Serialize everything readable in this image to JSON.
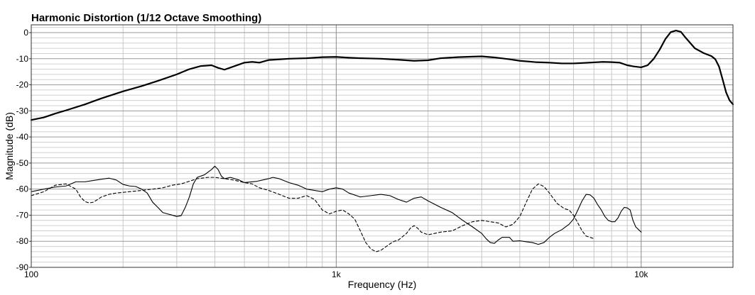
{
  "chart_data": {
    "type": "line",
    "title": "Harmonic Distortion (1/12 Octave Smoothing)",
    "xlabel": "Frequency (Hz)",
    "ylabel": "Magnitude (dB)",
    "x_scale": "log",
    "xlim": [
      100,
      20000
    ],
    "ylim": [
      -90,
      3
    ],
    "x_tick_labels": [
      {
        "value": 100,
        "label": "100"
      },
      {
        "value": 1000,
        "label": "1k"
      },
      {
        "value": 10000,
        "label": "10k"
      }
    ],
    "y_ticks": [
      0,
      -10,
      -20,
      -30,
      -40,
      -50,
      -60,
      -70,
      -80,
      -90
    ],
    "grid": true,
    "legend": "none",
    "series": [
      {
        "style": "bold",
        "points": [
          [
            100,
            -33.5
          ],
          [
            110,
            -32.5
          ],
          [
            120,
            -31
          ],
          [
            130,
            -29.8
          ],
          [
            150,
            -27.5
          ],
          [
            170,
            -25.2
          ],
          [
            200,
            -22.5
          ],
          [
            230,
            -20.5
          ],
          [
            260,
            -18.5
          ],
          [
            300,
            -16
          ],
          [
            330,
            -14
          ],
          [
            360,
            -12.8
          ],
          [
            390,
            -12.5
          ],
          [
            410,
            -13.5
          ],
          [
            430,
            -14.2
          ],
          [
            460,
            -13
          ],
          [
            500,
            -11.5
          ],
          [
            530,
            -11.2
          ],
          [
            560,
            -11.5
          ],
          [
            600,
            -10.5
          ],
          [
            700,
            -10
          ],
          [
            800,
            -9.8
          ],
          [
            900,
            -9.4
          ],
          [
            1000,
            -9.3
          ],
          [
            1100,
            -9.6
          ],
          [
            1200,
            -9.8
          ],
          [
            1400,
            -10
          ],
          [
            1600,
            -10.4
          ],
          [
            1800,
            -10.8
          ],
          [
            2000,
            -10.6
          ],
          [
            2200,
            -9.8
          ],
          [
            2500,
            -9.4
          ],
          [
            2800,
            -9.2
          ],
          [
            3000,
            -9.1
          ],
          [
            3300,
            -9.5
          ],
          [
            3700,
            -10.2
          ],
          [
            4000,
            -10.8
          ],
          [
            4500,
            -11.3
          ],
          [
            5000,
            -11.5
          ],
          [
            5500,
            -11.8
          ],
          [
            6000,
            -11.8
          ],
          [
            6500,
            -11.6
          ],
          [
            7000,
            -11.4
          ],
          [
            7500,
            -11.2
          ],
          [
            8000,
            -11.3
          ],
          [
            8500,
            -11.5
          ],
          [
            9000,
            -12.5
          ],
          [
            9500,
            -13
          ],
          [
            10000,
            -13.3
          ],
          [
            10500,
            -12.5
          ],
          [
            11000,
            -10
          ],
          [
            11500,
            -6.5
          ],
          [
            12000,
            -2.5
          ],
          [
            12500,
            0.2
          ],
          [
            13000,
            0.8
          ],
          [
            13500,
            0.3
          ],
          [
            14000,
            -2
          ],
          [
            15000,
            -6
          ],
          [
            16000,
            -7.8
          ],
          [
            17000,
            -9
          ],
          [
            17500,
            -10.2
          ],
          [
            18000,
            -13
          ],
          [
            18500,
            -18
          ],
          [
            19000,
            -23
          ],
          [
            19500,
            -26
          ],
          [
            20000,
            -27.5
          ]
        ]
      },
      {
        "style": "solid",
        "points": [
          [
            100,
            -61
          ],
          [
            110,
            -60
          ],
          [
            120,
            -59.2
          ],
          [
            130,
            -58.8
          ],
          [
            140,
            -57.2
          ],
          [
            150,
            -57.2
          ],
          [
            170,
            -56.2
          ],
          [
            180,
            -55.8
          ],
          [
            190,
            -56.5
          ],
          [
            200,
            -58.2
          ],
          [
            210,
            -58.8
          ],
          [
            220,
            -59
          ],
          [
            230,
            -60
          ],
          [
            240,
            -61.5
          ],
          [
            250,
            -65
          ],
          [
            260,
            -67
          ],
          [
            270,
            -69
          ],
          [
            280,
            -69.5
          ],
          [
            290,
            -70
          ],
          [
            300,
            -70.5
          ],
          [
            310,
            -70.2
          ],
          [
            320,
            -67
          ],
          [
            330,
            -63
          ],
          [
            340,
            -58
          ],
          [
            350,
            -55.5
          ],
          [
            370,
            -54.5
          ],
          [
            390,
            -52.5
          ],
          [
            400,
            -51.2
          ],
          [
            410,
            -52.5
          ],
          [
            420,
            -55
          ],
          [
            430,
            -56
          ],
          [
            450,
            -55.5
          ],
          [
            480,
            -56.5
          ],
          [
            500,
            -57.5
          ],
          [
            550,
            -57
          ],
          [
            600,
            -56
          ],
          [
            620,
            -55.5
          ],
          [
            650,
            -56
          ],
          [
            700,
            -57.5
          ],
          [
            750,
            -58.5
          ],
          [
            800,
            -60
          ],
          [
            850,
            -60.5
          ],
          [
            900,
            -61
          ],
          [
            950,
            -60
          ],
          [
            1000,
            -59.5
          ],
          [
            1050,
            -60
          ],
          [
            1100,
            -61.5
          ],
          [
            1200,
            -63
          ],
          [
            1300,
            -62.5
          ],
          [
            1400,
            -62
          ],
          [
            1500,
            -62.5
          ],
          [
            1600,
            -64
          ],
          [
            1700,
            -65
          ],
          [
            1800,
            -63.5
          ],
          [
            1900,
            -63
          ],
          [
            2000,
            -64.5
          ],
          [
            2200,
            -67
          ],
          [
            2400,
            -69
          ],
          [
            2600,
            -72
          ],
          [
            2800,
            -74.5
          ],
          [
            3000,
            -77
          ],
          [
            3100,
            -79
          ],
          [
            3200,
            -80.5
          ],
          [
            3300,
            -80.8
          ],
          [
            3400,
            -79.5
          ],
          [
            3500,
            -78.5
          ],
          [
            3700,
            -78.5
          ],
          [
            3800,
            -80
          ],
          [
            4000,
            -79.8
          ],
          [
            4200,
            -80.2
          ],
          [
            4400,
            -80.5
          ],
          [
            4600,
            -81.2
          ],
          [
            4800,
            -80.5
          ],
          [
            5000,
            -78.5
          ],
          [
            5200,
            -77
          ],
          [
            5500,
            -75.5
          ],
          [
            5800,
            -73.5
          ],
          [
            6000,
            -71.5
          ],
          [
            6200,
            -68
          ],
          [
            6400,
            -64.5
          ],
          [
            6600,
            -62
          ],
          [
            6800,
            -62.2
          ],
          [
            7000,
            -63.5
          ],
          [
            7200,
            -66
          ],
          [
            7400,
            -68
          ],
          [
            7600,
            -70.5
          ],
          [
            7800,
            -72
          ],
          [
            8000,
            -72.5
          ],
          [
            8200,
            -72.5
          ],
          [
            8400,
            -71
          ],
          [
            8600,
            -68.5
          ],
          [
            8800,
            -67
          ],
          [
            9000,
            -67.2
          ],
          [
            9200,
            -68
          ],
          [
            9400,
            -72
          ],
          [
            9600,
            -74.5
          ],
          [
            9800,
            -75.5
          ],
          [
            10000,
            -76.5
          ]
        ]
      },
      {
        "style": "dashed",
        "points": [
          [
            100,
            -62.5
          ],
          [
            110,
            -61
          ],
          [
            120,
            -58.5
          ],
          [
            130,
            -58
          ],
          [
            140,
            -60
          ],
          [
            145,
            -63
          ],
          [
            150,
            -64.8
          ],
          [
            155,
            -65.3
          ],
          [
            160,
            -65
          ],
          [
            170,
            -63
          ],
          [
            180,
            -62
          ],
          [
            190,
            -61.5
          ],
          [
            210,
            -61
          ],
          [
            230,
            -60.5
          ],
          [
            250,
            -60
          ],
          [
            270,
            -59.5
          ],
          [
            290,
            -58.5
          ],
          [
            310,
            -58
          ],
          [
            330,
            -57
          ],
          [
            350,
            -56
          ],
          [
            380,
            -55.5
          ],
          [
            400,
            -55.5
          ],
          [
            430,
            -56
          ],
          [
            460,
            -56.5
          ],
          [
            500,
            -57.5
          ],
          [
            530,
            -58
          ],
          [
            560,
            -59.5
          ],
          [
            600,
            -60.5
          ],
          [
            650,
            -62
          ],
          [
            700,
            -63.5
          ],
          [
            750,
            -63.5
          ],
          [
            800,
            -62.5
          ],
          [
            850,
            -64
          ],
          [
            900,
            -68
          ],
          [
            950,
            -69.5
          ],
          [
            1000,
            -68.5
          ],
          [
            1050,
            -68
          ],
          [
            1100,
            -69.5
          ],
          [
            1150,
            -71.5
          ],
          [
            1200,
            -76
          ],
          [
            1250,
            -80.5
          ],
          [
            1300,
            -83
          ],
          [
            1350,
            -84
          ],
          [
            1400,
            -83.5
          ],
          [
            1500,
            -81
          ],
          [
            1550,
            -80
          ],
          [
            1600,
            -79.5
          ],
          [
            1700,
            -77
          ],
          [
            1750,
            -75
          ],
          [
            1800,
            -74
          ],
          [
            1850,
            -75
          ],
          [
            1900,
            -76.5
          ],
          [
            2000,
            -77.5
          ],
          [
            2100,
            -77
          ],
          [
            2200,
            -76.5
          ],
          [
            2400,
            -76
          ],
          [
            2600,
            -74
          ],
          [
            2800,
            -72.5
          ],
          [
            3000,
            -72
          ],
          [
            3200,
            -72.5
          ],
          [
            3400,
            -73
          ],
          [
            3600,
            -74.5
          ],
          [
            3800,
            -73.5
          ],
          [
            4000,
            -70.5
          ],
          [
            4200,
            -65
          ],
          [
            4400,
            -60
          ],
          [
            4600,
            -58
          ],
          [
            4800,
            -59
          ],
          [
            5000,
            -61.5
          ],
          [
            5300,
            -65.5
          ],
          [
            5600,
            -67.5
          ],
          [
            5800,
            -68
          ],
          [
            6000,
            -70
          ],
          [
            6200,
            -73
          ],
          [
            6400,
            -76
          ],
          [
            6600,
            -78
          ],
          [
            6800,
            -78.5
          ],
          [
            7000,
            -79
          ]
        ]
      }
    ]
  }
}
